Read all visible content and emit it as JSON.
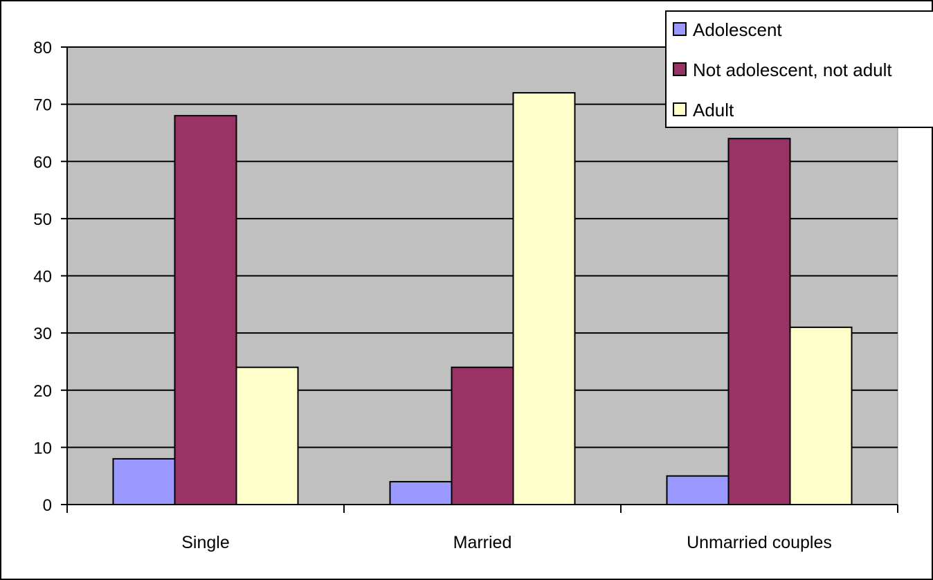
{
  "chart_data": {
    "type": "bar",
    "categories": [
      "Single",
      "Married",
      "Unmarried couples"
    ],
    "series": [
      {
        "name": "Adolescent",
        "values": [
          8,
          4,
          5
        ],
        "color": "#9999ff"
      },
      {
        "name": "Not adolescent, not adult",
        "values": [
          68,
          24,
          64
        ],
        "color": "#993366"
      },
      {
        "name": "Adult",
        "values": [
          24,
          72,
          31
        ],
        "color": "#ffffcc"
      }
    ],
    "ylim": [
      0,
      80
    ],
    "yticks": [
      0,
      10,
      20,
      30,
      40,
      50,
      60,
      70,
      80
    ],
    "grid": true,
    "plot_background": "#c0c0c0",
    "legend_position": "top-right"
  }
}
